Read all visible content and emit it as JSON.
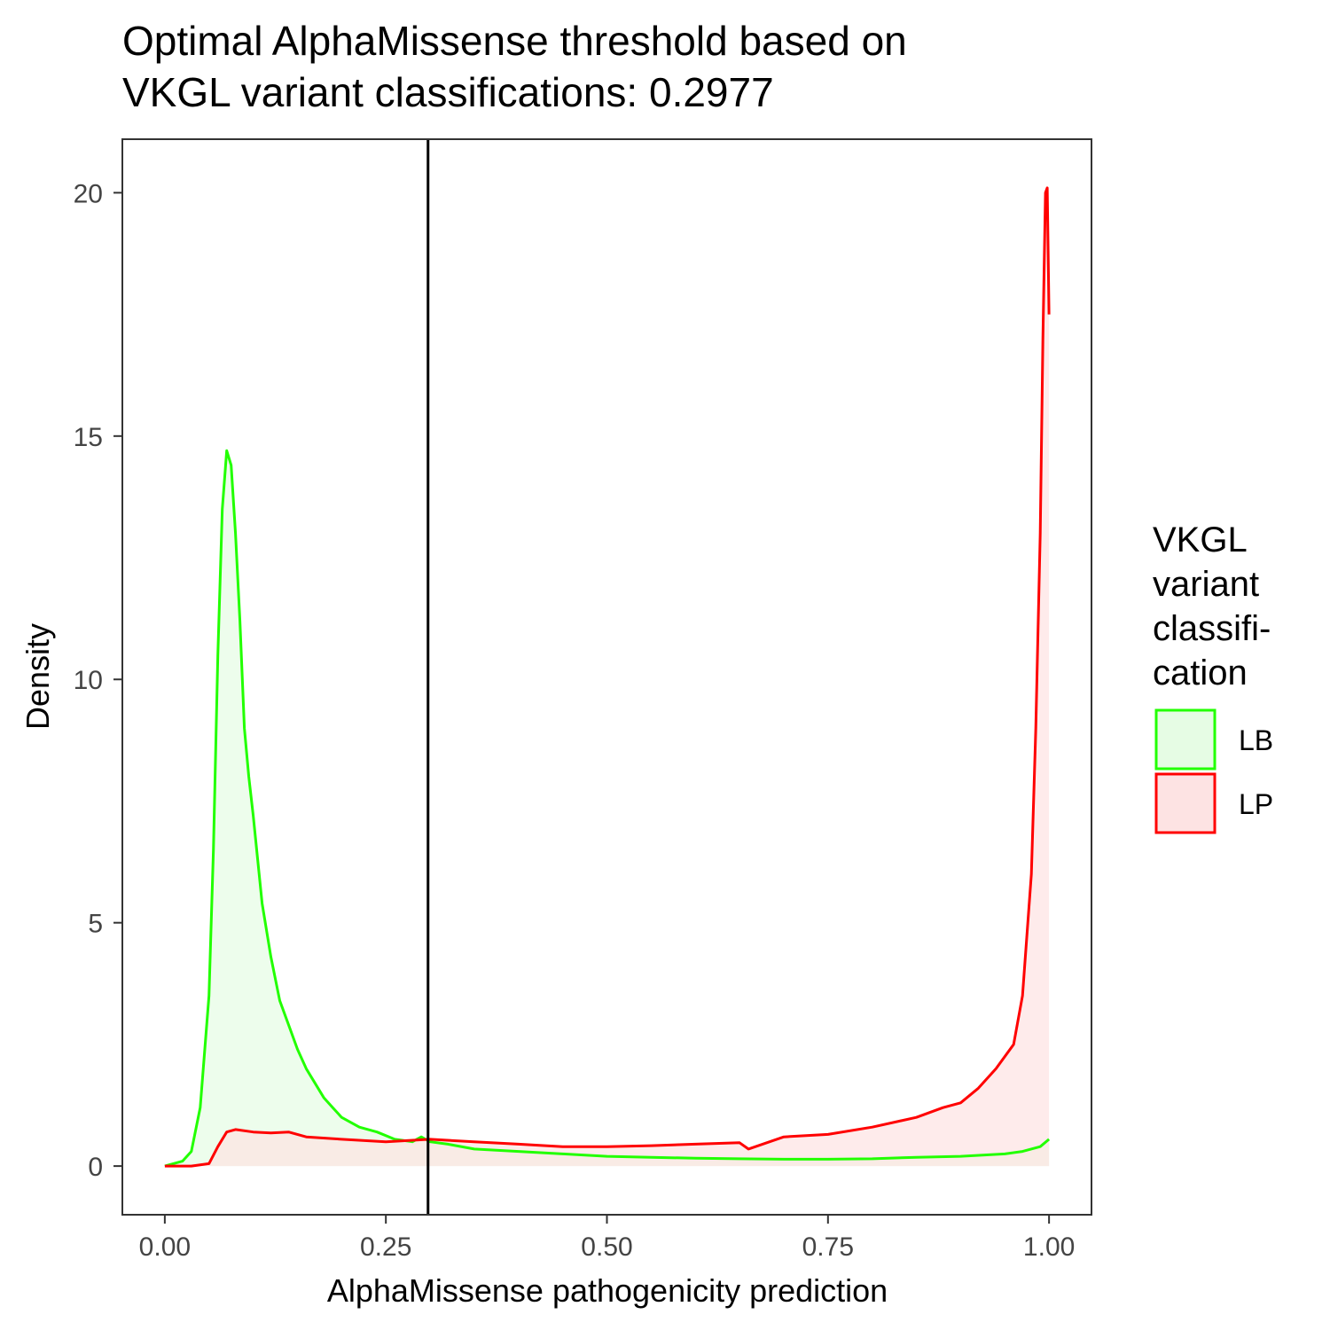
{
  "chart_data": {
    "type": "area",
    "title_lines": [
      "Optimal AlphaMissense threshold based on",
      "VKGL variant classifications: 0.2977"
    ],
    "xlabel": "AlphaMissense pathogenicity prediction",
    "ylabel": "Density",
    "xlim": [
      -0.048,
      1.048
    ],
    "ylim": [
      -1.0,
      21.1
    ],
    "x_ticks": [
      0,
      0.25,
      0.5,
      0.75,
      1.0
    ],
    "x_tick_labels": [
      "0.00",
      "0.25",
      "0.50",
      "0.75",
      "1.00"
    ],
    "y_ticks": [
      0,
      5,
      10,
      15,
      20
    ],
    "y_tick_labels": [
      "0",
      "5",
      "10",
      "15",
      "20"
    ],
    "grid": false,
    "threshold": 0.2977,
    "legend": {
      "title_lines": [
        "VKGL",
        "variant",
        "classifi-",
        "cation"
      ],
      "position": "right"
    },
    "series": [
      {
        "name": "LB",
        "color": "#22ff00",
        "fill": "#e6fce4",
        "x": [
          0.0,
          0.02,
          0.03,
          0.04,
          0.05,
          0.055,
          0.06,
          0.065,
          0.07,
          0.075,
          0.08,
          0.085,
          0.09,
          0.095,
          0.1,
          0.105,
          0.11,
          0.12,
          0.13,
          0.14,
          0.15,
          0.16,
          0.17,
          0.18,
          0.19,
          0.2,
          0.22,
          0.24,
          0.26,
          0.28,
          0.29,
          0.3,
          0.32,
          0.35,
          0.4,
          0.45,
          0.5,
          0.55,
          0.6,
          0.65,
          0.7,
          0.75,
          0.8,
          0.85,
          0.9,
          0.95,
          0.97,
          0.99,
          1.0
        ],
        "y": [
          0,
          0.1,
          0.3,
          1.2,
          3.5,
          6.5,
          10.5,
          13.5,
          14.7,
          14.4,
          13.0,
          11.2,
          9.0,
          8.0,
          7.2,
          6.3,
          5.4,
          4.3,
          3.4,
          2.9,
          2.4,
          2.0,
          1.7,
          1.4,
          1.2,
          1.0,
          0.8,
          0.7,
          0.55,
          0.5,
          0.6,
          0.5,
          0.45,
          0.35,
          0.3,
          0.25,
          0.2,
          0.18,
          0.16,
          0.15,
          0.14,
          0.14,
          0.15,
          0.18,
          0.2,
          0.25,
          0.3,
          0.4,
          0.55
        ]
      },
      {
        "name": "LP",
        "color": "#ff0000",
        "fill": "#fde3e3",
        "x": [
          0.0,
          0.03,
          0.05,
          0.06,
          0.07,
          0.08,
          0.1,
          0.12,
          0.14,
          0.16,
          0.2,
          0.25,
          0.3,
          0.35,
          0.4,
          0.45,
          0.5,
          0.55,
          0.6,
          0.65,
          0.66,
          0.7,
          0.75,
          0.8,
          0.85,
          0.88,
          0.9,
          0.92,
          0.94,
          0.96,
          0.97,
          0.98,
          0.985,
          0.99,
          0.993,
          0.996,
          0.998,
          1.0
        ],
        "y": [
          0,
          0,
          0.05,
          0.4,
          0.7,
          0.75,
          0.7,
          0.68,
          0.7,
          0.6,
          0.55,
          0.5,
          0.55,
          0.5,
          0.45,
          0.4,
          0.4,
          0.42,
          0.45,
          0.48,
          0.35,
          0.6,
          0.65,
          0.8,
          1.0,
          1.2,
          1.3,
          1.6,
          2.0,
          2.5,
          3.5,
          6.0,
          9.0,
          13.0,
          17.0,
          20.0,
          20.1,
          17.5
        ]
      }
    ]
  }
}
